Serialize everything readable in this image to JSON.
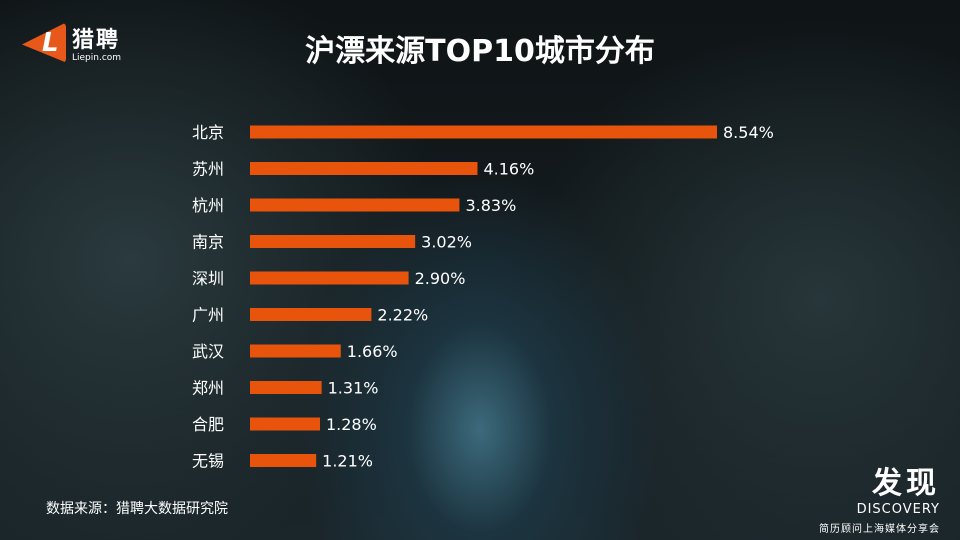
{
  "logo": {
    "cn": "猎聘",
    "en": "Liepin.com",
    "letter": "L",
    "brand_color": "#e8581a"
  },
  "chart_data": {
    "type": "bar",
    "orientation": "horizontal",
    "title": "沪漂来源TOP10城市分布",
    "categories": [
      "北京",
      "苏州",
      "杭州",
      "南京",
      "深圳",
      "广州",
      "武汉",
      "郑州",
      "合肥",
      "无锡"
    ],
    "values": [
      8.54,
      4.16,
      3.83,
      3.02,
      2.9,
      2.22,
      1.66,
      1.31,
      1.28,
      1.21
    ],
    "labels": [
      "8.54%",
      "4.16%",
      "3.83%",
      "3.02%",
      "2.90%",
      "2.22%",
      "1.66%",
      "1.31%",
      "1.28%",
      "1.21%"
    ],
    "unit": "%",
    "bar_color": "#e8540c",
    "grid": false,
    "legend": "none"
  },
  "source": "数据来源：猎聘大数据研究院",
  "branding": {
    "cn": "发现",
    "en": "DISCOVERY",
    "sub": "简历顾问上海媒体分享会"
  }
}
